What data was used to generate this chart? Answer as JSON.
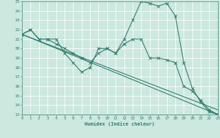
{
  "xlabel": "Humidex (Indice chaleur)",
  "xlim": [
    0,
    23
  ],
  "ylim": [
    13,
    25
  ],
  "yticks": [
    13,
    14,
    15,
    16,
    17,
    18,
    19,
    20,
    21,
    22,
    23,
    24,
    25
  ],
  "xticks": [
    0,
    1,
    2,
    3,
    4,
    5,
    6,
    7,
    8,
    9,
    10,
    11,
    12,
    13,
    14,
    15,
    16,
    17,
    18,
    19,
    20,
    21,
    22,
    23
  ],
  "bg_color": "#cce8df",
  "line_color": "#2d7a6b",
  "grid_color": "#ffffff",
  "lines": [
    {
      "x": [
        0,
        1,
        2,
        3,
        4,
        5,
        6,
        7,
        8,
        9,
        10,
        11,
        12,
        13,
        14,
        15,
        16,
        17,
        18,
        19,
        20,
        21,
        22,
        23
      ],
      "y": [
        21.5,
        22.0,
        21.0,
        21.0,
        21.0,
        19.5,
        18.5,
        17.5,
        18.0,
        20.0,
        20.0,
        19.5,
        21.0,
        23.0,
        25.0,
        24.8,
        24.5,
        24.8,
        23.5,
        18.5,
        15.8,
        14.3,
        13.3,
        13.0
      ],
      "marker": true
    },
    {
      "x": [
        0,
        1,
        2,
        3,
        4,
        5,
        6,
        7,
        8,
        9,
        10,
        11,
        12,
        13,
        14,
        15,
        16,
        17,
        18,
        19,
        20,
        21,
        22,
        23
      ],
      "y": [
        21.5,
        22.0,
        21.0,
        21.0,
        20.5,
        20.0,
        19.5,
        19.0,
        18.5,
        19.5,
        20.0,
        19.5,
        20.5,
        21.0,
        21.0,
        19.0,
        19.0,
        18.8,
        18.5,
        16.0,
        15.5,
        14.5,
        13.5,
        13.0
      ],
      "marker": true
    },
    {
      "x": [
        0,
        23
      ],
      "y": [
        21.5,
        13.0
      ],
      "marker": false
    },
    {
      "x": [
        0,
        23
      ],
      "y": [
        21.5,
        13.5
      ],
      "marker": false
    }
  ]
}
